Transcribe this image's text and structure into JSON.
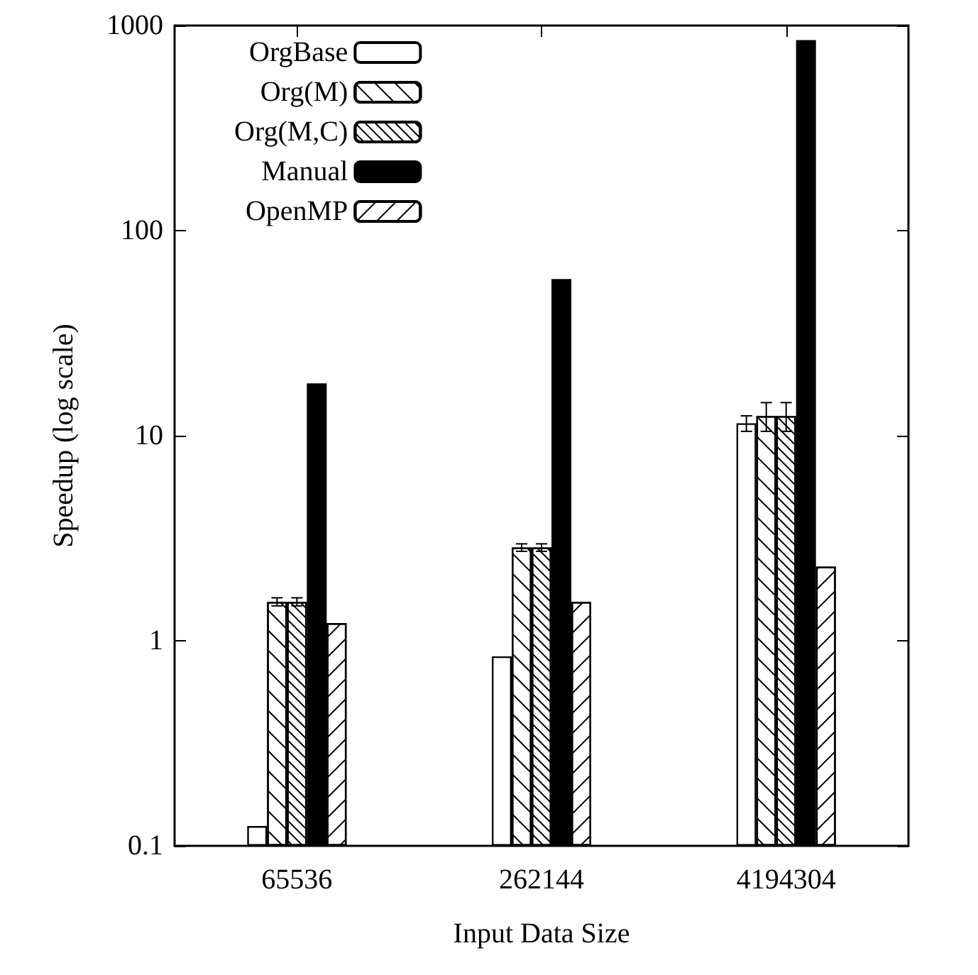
{
  "chart_data": {
    "type": "bar",
    "xlabel": "Input Data Size",
    "ylabel": "Speedup (log scale)",
    "categories": [
      "65536",
      "262144",
      "4194304"
    ],
    "series": [
      {
        "name": "OrgBase",
        "color": "#ffffff",
        "values": [
          0.125,
          0.84,
          11.5
        ],
        "errors": [
          null,
          null,
          1
        ]
      },
      {
        "name": "Org(M)",
        "color": "#ffffff",
        "values": [
          1.55,
          2.85,
          12.5
        ],
        "errors": [
          0.07,
          0.12,
          2
        ]
      },
      {
        "name": "Org(M,C)",
        "color": "#ffffff",
        "values": [
          1.55,
          2.85,
          12.5
        ],
        "errors": [
          0.07,
          0.12,
          2
        ]
      },
      {
        "name": "Manual",
        "color": "#000000",
        "values": [
          18,
          58,
          850
        ]
      },
      {
        "name": "OpenMP",
        "color": "#ffffff",
        "values": [
          1.22,
          1.55,
          2.3
        ]
      }
    ],
    "log": "y",
    "ylim": [
      0.1,
      1000
    ],
    "yticks": [
      0.1,
      1,
      10,
      100,
      1000
    ],
    "legend": "top left",
    "grid": false
  }
}
